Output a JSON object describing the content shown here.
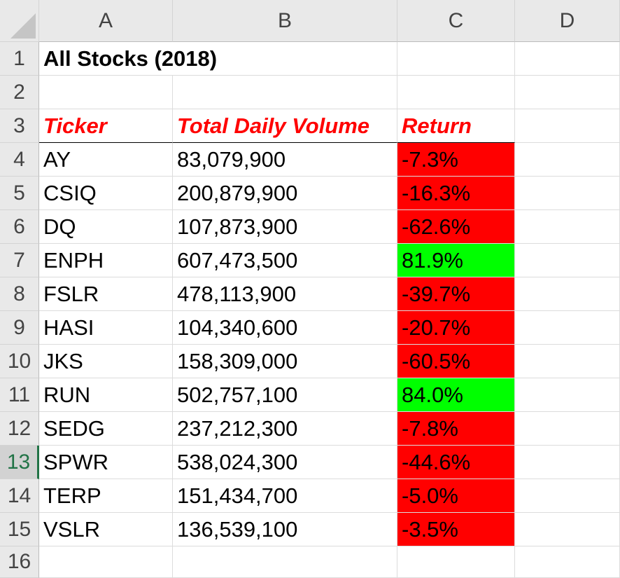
{
  "sheet": {
    "column_headers": [
      "A",
      "B",
      "C",
      "D"
    ],
    "row_numbers": [
      "1",
      "2",
      "3",
      "4",
      "5",
      "6",
      "7",
      "8",
      "9",
      "10",
      "11",
      "12",
      "13",
      "14",
      "15",
      "16"
    ],
    "active_row": "13",
    "title": "All Stocks (2018)",
    "headers": {
      "ticker": "Ticker",
      "volume": "Total Daily Volume",
      "return": "Return"
    },
    "rows": [
      {
        "ticker": "AY",
        "volume": "83,079,900",
        "return": "-7.3%",
        "fill": "#ff0000"
      },
      {
        "ticker": "CSIQ",
        "volume": "200,879,900",
        "return": "-16.3%",
        "fill": "#ff0000"
      },
      {
        "ticker": "DQ",
        "volume": "107,873,900",
        "return": "-62.6%",
        "fill": "#ff0000"
      },
      {
        "ticker": "ENPH",
        "volume": "607,473,500",
        "return": "81.9%",
        "fill": "#00ff00"
      },
      {
        "ticker": "FSLR",
        "volume": "478,113,900",
        "return": "-39.7%",
        "fill": "#ff0000"
      },
      {
        "ticker": "HASI",
        "volume": "104,340,600",
        "return": "-20.7%",
        "fill": "#ff0000"
      },
      {
        "ticker": "JKS",
        "volume": "158,309,000",
        "return": "-60.5%",
        "fill": "#ff0000"
      },
      {
        "ticker": "RUN",
        "volume": "502,757,100",
        "return": "84.0%",
        "fill": "#00ff00"
      },
      {
        "ticker": "SEDG",
        "volume": "237,212,300",
        "return": "-7.8%",
        "fill": "#ff0000"
      },
      {
        "ticker": "SPWR",
        "volume": "538,024,300",
        "return": "-44.6%",
        "fill": "#ff0000"
      },
      {
        "ticker": "TERP",
        "volume": "151,434,700",
        "return": "-5.0%",
        "fill": "#ff0000"
      },
      {
        "ticker": "VSLR",
        "volume": "136,539,100",
        "return": "-3.5%",
        "fill": "#ff0000"
      }
    ],
    "colors": {
      "header_text": "#ff0000",
      "positive_fill": "#00ff00",
      "negative_fill": "#ff0000",
      "active_row_accent": "#217346"
    }
  }
}
